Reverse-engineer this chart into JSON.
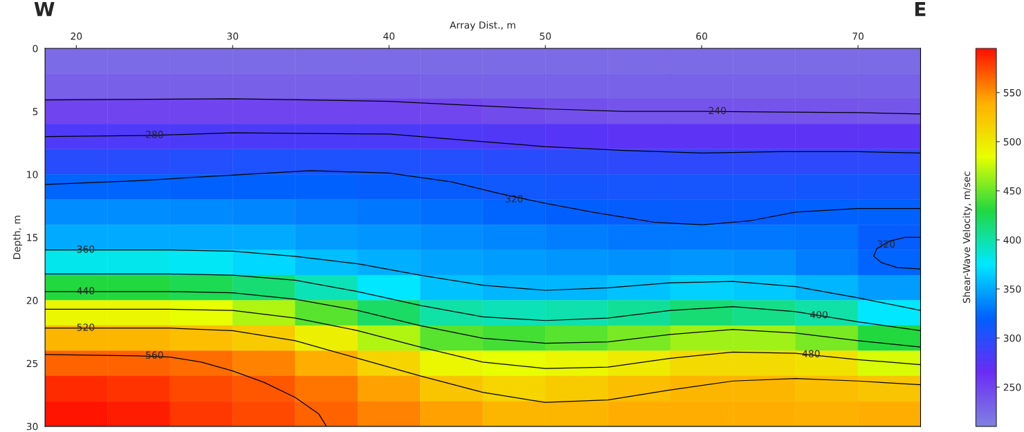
{
  "chart_data": [
    {
      "type": "heatmap",
      "clabel": "Shear-Wave Velocity, m/sec",
      "tick_labels": false,
      "categories": [
        null,
        null,
        null,
        null,
        null,
        null,
        null,
        null,
        null,
        null,
        null,
        null,
        null,
        null
      ],
      "y_categories": [
        null,
        null,
        null,
        null,
        null,
        null,
        null,
        null,
        null,
        null,
        null,
        null,
        null,
        null,
        null
      ],
      "cells": [
        [
          225,
          225,
          225,
          225,
          225,
          225,
          225,
          225,
          225,
          225,
          225,
          225,
          225,
          225
        ],
        [
          232,
          232,
          232,
          232,
          232,
          232,
          231,
          230,
          230,
          230,
          230,
          230,
          230,
          230
        ],
        [
          250,
          250,
          250,
          250,
          250,
          250,
          248,
          245,
          242,
          240,
          240,
          240,
          240,
          238
        ],
        [
          280,
          280,
          281,
          282,
          282,
          282,
          280,
          278,
          275,
          273,
          272,
          272,
          272,
          272
        ],
        [
          300,
          300,
          302,
          305,
          305,
          305,
          302,
          300,
          298,
          297,
          296,
          296,
          296,
          296
        ],
        [
          322,
          322,
          321,
          320,
          320,
          318,
          316,
          312,
          310,
          308,
          308,
          308,
          310,
          310
        ],
        [
          338,
          338,
          337,
          335,
          333,
          330,
          326,
          322,
          319,
          317,
          316,
          317,
          320,
          321
        ],
        [
          350,
          350,
          350,
          350,
          345,
          342,
          338,
          335,
          332,
          330,
          330,
          330,
          328,
          318
        ],
        [
          380,
          380,
          377,
          368,
          358,
          352,
          348,
          345,
          342,
          340,
          342,
          340,
          332,
          322
        ],
        [
          430,
          430,
          425,
          415,
          395,
          375,
          360,
          355,
          355,
          360,
          365,
          362,
          355,
          345
        ],
        [
          490,
          490,
          485,
          470,
          445,
          420,
          400,
          395,
          398,
          405,
          415,
          410,
          400,
          375
        ],
        [
          535,
          535,
          530,
          520,
          495,
          470,
          445,
          440,
          445,
          455,
          465,
          465,
          455,
          430
        ],
        [
          565,
          565,
          562,
          555,
          540,
          515,
          490,
          485,
          490,
          500,
          510,
          510,
          505,
          480
        ],
        [
          585,
          582,
          575,
          570,
          560,
          545,
          525,
          515,
          520,
          530,
          535,
          535,
          530,
          525
        ],
        [
          592,
          590,
          580,
          575,
          565,
          555,
          545,
          535,
          535,
          540,
          540,
          540,
          538,
          540
        ]
      ],
      "colors": [
        "#8080e0",
        "#6a2cf5",
        "#0060ff",
        "#00e8ff",
        "#20d840",
        "#e8ff00",
        "#ffb000",
        "#ff1000"
      ],
      "clim": [
        210,
        595
      ],
      "cticks": [
        250,
        300,
        350,
        400,
        450,
        500,
        550
      ]
    },
    {
      "type": "line",
      "xlabel": "Array Dist., m",
      "ylabel": "Depth, m",
      "xlim": [
        18,
        74
      ],
      "xticks": [
        20,
        30,
        40,
        50,
        60,
        70
      ],
      "ylim": [
        30,
        0
      ],
      "yticks": [
        0,
        5,
        10,
        15,
        20,
        25,
        30
      ],
      "grid": false,
      "series": [
        {
          "color": "#000000",
          "x": [
            18,
            30,
            40,
            45,
            50,
            55,
            60,
            65,
            70,
            74
          ],
          "values": [
            4.1,
            4.0,
            4.2,
            4.5,
            4.8,
            5.0,
            5.0,
            5.05,
            5.1,
            5.2
          ]
        },
        {
          "color": "#000000",
          "x": [
            18,
            25,
            30,
            40,
            45,
            50,
            55,
            60,
            65,
            70,
            74
          ],
          "values": [
            7.0,
            6.9,
            6.7,
            6.8,
            7.3,
            7.8,
            8.1,
            8.3,
            8.2,
            8.2,
            8.3
          ]
        },
        {
          "color": "#000000",
          "x": [
            18,
            24,
            28,
            35,
            40,
            44,
            47,
            50,
            53,
            57,
            60,
            63,
            66,
            70,
            74
          ],
          "values": [
            10.8,
            10.5,
            10.2,
            9.7,
            9.9,
            10.6,
            11.5,
            12.3,
            13.0,
            13.8,
            14.0,
            13.7,
            13.0,
            12.7,
            12.7
          ]
        },
        {
          "color": "#000000",
          "x": [
            74,
            73,
            72,
            71.2,
            71.0,
            71.5,
            72.5,
            74
          ],
          "values": [
            15.0,
            15.0,
            15.3,
            15.9,
            16.5,
            17.0,
            17.4,
            17.5
          ]
        },
        {
          "color": "#000000",
          "x": [
            18,
            26,
            30,
            34,
            38,
            42,
            46,
            50,
            54,
            58,
            62,
            66,
            70,
            74
          ],
          "values": [
            16.0,
            16.0,
            16.1,
            16.5,
            17.1,
            18.0,
            18.8,
            19.2,
            19.0,
            18.6,
            18.5,
            18.9,
            19.8,
            20.8
          ]
        },
        {
          "color": "#000000",
          "x": [
            18,
            26,
            30,
            34,
            38,
            42,
            46,
            50,
            54,
            58,
            62,
            66,
            70,
            74
          ],
          "values": [
            17.9,
            17.9,
            18.0,
            18.4,
            19.3,
            20.4,
            21.3,
            21.6,
            21.4,
            20.8,
            20.5,
            20.9,
            21.7,
            22.4
          ]
        },
        {
          "color": "#000000",
          "x": [
            18,
            26,
            30,
            34,
            38,
            42,
            46,
            50,
            54,
            58,
            62,
            66,
            70,
            74
          ],
          "values": [
            19.3,
            19.3,
            19.4,
            19.9,
            20.8,
            22.0,
            23.0,
            23.4,
            23.3,
            22.7,
            22.3,
            22.6,
            23.2,
            23.7
          ]
        },
        {
          "color": "#000000",
          "x": [
            18,
            26,
            30,
            34,
            38,
            42,
            46,
            50,
            54,
            58,
            62,
            66,
            70,
            74
          ],
          "values": [
            20.7,
            20.7,
            20.8,
            21.4,
            22.4,
            23.7,
            24.9,
            25.4,
            25.3,
            24.6,
            24.1,
            24.2,
            24.7,
            25.1
          ]
        },
        {
          "color": "#000000",
          "x": [
            18,
            26,
            30,
            34,
            38,
            42,
            46,
            50,
            54,
            58,
            62,
            66,
            70,
            74
          ],
          "values": [
            22.2,
            22.2,
            22.4,
            23.2,
            24.6,
            26.0,
            27.3,
            28.1,
            27.9,
            27.1,
            26.4,
            26.2,
            26.4,
            26.7
          ]
        },
        {
          "color": "#000000",
          "x": [
            18,
            24,
            26,
            28,
            30,
            32,
            34,
            35.5,
            36
          ],
          "values": [
            24.3,
            24.4,
            24.5,
            24.9,
            25.6,
            26.5,
            27.7,
            29.0,
            30.0
          ]
        }
      ],
      "annotations": [
        {
          "text": "240",
          "x": 61,
          "y": 5.0
        },
        {
          "text": "280",
          "x": 25,
          "y": 6.9
        },
        {
          "text": "320",
          "x": 48,
          "y": 12.0
        },
        {
          "text": "320",
          "x": 71.8,
          "y": 15.6
        },
        {
          "text": "360",
          "x": 20.6,
          "y": 16.0
        },
        {
          "text": "440",
          "x": 20.6,
          "y": 19.3
        },
        {
          "text": "520",
          "x": 20.6,
          "y": 22.2
        },
        {
          "text": "560",
          "x": 25,
          "y": 24.4
        },
        {
          "text": "400",
          "x": 67.5,
          "y": 21.2
        },
        {
          "text": "480",
          "x": 67,
          "y": 24.3
        },
        "W",
        "E"
      ]
    }
  ]
}
